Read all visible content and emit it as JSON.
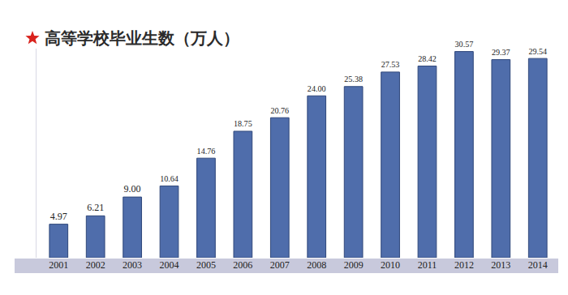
{
  "chart_data": {
    "type": "bar",
    "title": "高等学校毕业生数（万人）",
    "categories": [
      "2001",
      "2002",
      "2003",
      "2004",
      "2005",
      "2006",
      "2007",
      "2008",
      "2009",
      "2010",
      "2011",
      "2012",
      "2013",
      "2014"
    ],
    "values": [
      4.97,
      6.21,
      9.0,
      10.64,
      14.76,
      18.75,
      20.76,
      24.0,
      25.38,
      27.53,
      28.42,
      30.57,
      29.37,
      29.54
    ],
    "value_labels": [
      "4.97",
      "6.21",
      "9.00",
      "10.64",
      "14.76",
      "18.75",
      "20.76",
      "24.00",
      "25.38",
      "27.53",
      "28.42",
      "30.57",
      "29.37",
      "29.54"
    ],
    "color": "#4f6dab",
    "ylim": [
      0,
      31
    ],
    "grid": false,
    "data_labels": true,
    "tick_labels": "x"
  }
}
